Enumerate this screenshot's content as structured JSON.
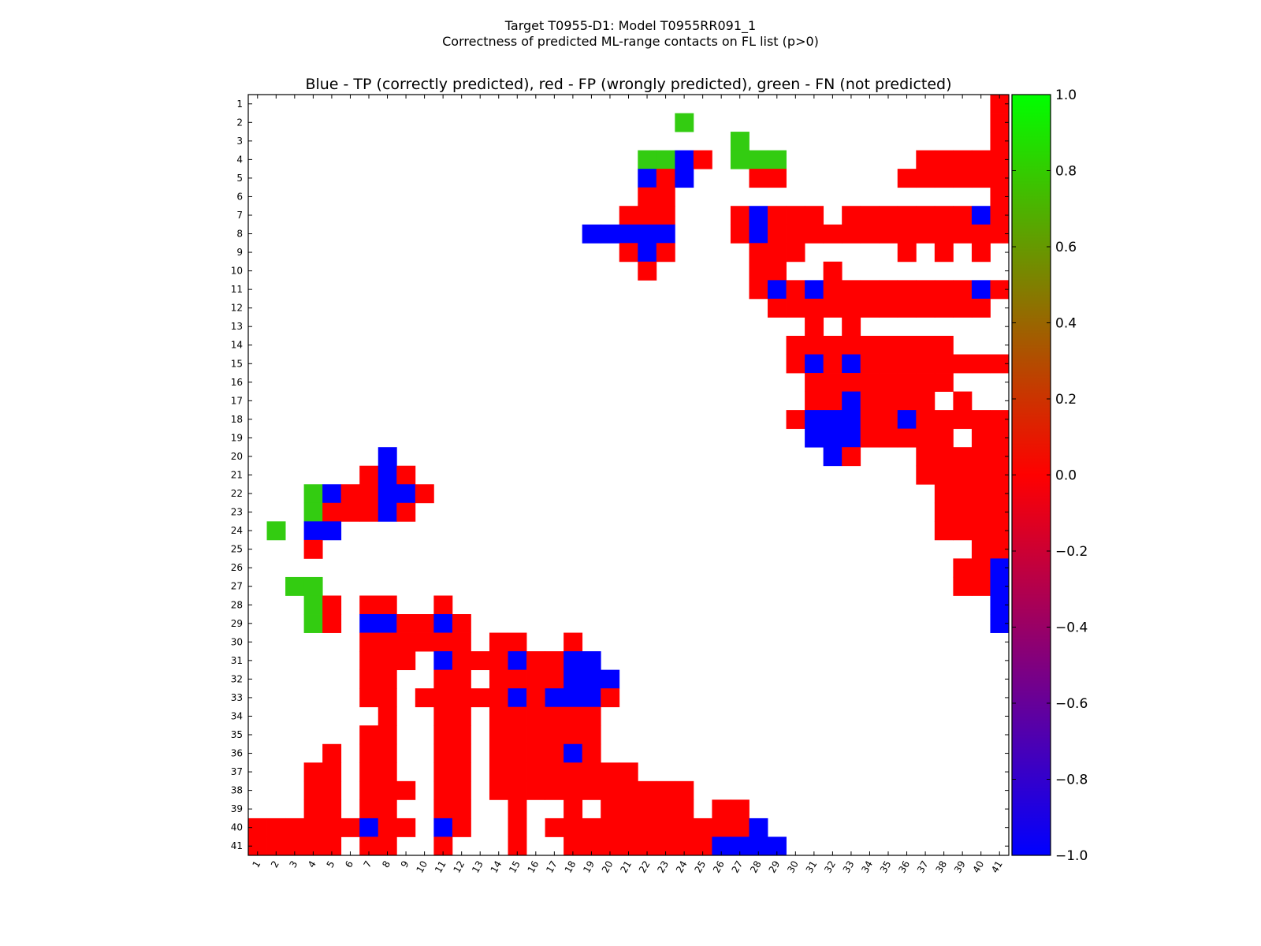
{
  "title": "Target T0955-D1: Model T0955RR091_1",
  "subtitle": "Correctness of predicted ML-range contacts on FL list (p>0)",
  "chart_data": {
    "type": "heatmap",
    "title": "Blue - TP (correctly predicted), red - FP (wrongly predicted), green - FN (not predicted)",
    "n": 41,
    "x_ticks": [
      "1",
      "2",
      "3",
      "4",
      "5",
      "6",
      "7",
      "8",
      "9",
      "10",
      "11",
      "12",
      "13",
      "14",
      "15",
      "16",
      "17",
      "18",
      "19",
      "20",
      "21",
      "22",
      "23",
      "24",
      "25",
      "26",
      "27",
      "28",
      "29",
      "30",
      "31",
      "32",
      "33",
      "34",
      "35",
      "36",
      "37",
      "38",
      "39",
      "40",
      "41"
    ],
    "y_ticks": [
      "1",
      "2",
      "3",
      "4",
      "5",
      "6",
      "7",
      "8",
      "9",
      "10",
      "11",
      "12",
      "13",
      "14",
      "15",
      "16",
      "17",
      "18",
      "19",
      "20",
      "21",
      "22",
      "23",
      "24",
      "25",
      "26",
      "27",
      "28",
      "29",
      "30",
      "31",
      "32",
      "33",
      "34",
      "35",
      "36",
      "37",
      "38",
      "39",
      "40",
      "41"
    ],
    "colorbar": {
      "min": -1.0,
      "max": 1.0,
      "ticks": [
        "1.0",
        "0.8",
        "0.6",
        "0.4",
        "0.2",
        "0.0",
        "−0.2",
        "−0.4",
        "−0.6",
        "−0.8",
        "−1.0"
      ],
      "tick_values": [
        1.0,
        0.8,
        0.6,
        0.4,
        0.2,
        0.0,
        -0.2,
        -0.4,
        -0.6,
        -0.8,
        -1.0
      ],
      "colors": [
        "#0000ff",
        "#ff0000",
        "#00ff00"
      ]
    },
    "legend": {
      "1": "#33cc11",
      "0": "#ff0000",
      "-1": "#0000ff"
    },
    "rows": [
      "........................................R",
      ".......................G................R",
      "..........................G.............R",
      ".....................GGBR.GGG.......RRRRR",
      ".....................BRB...RR......RRRRRR",
      ".....................RR.................R",
      "....................RRR...RBRRR.RRRRRRRBR",
      "..................BBBBB...RBRRRRRRRRRRRRR",
      "....................RBR....RRR.....R.R.R.",
      ".....................R.....RR..R.........",
      "...........................RBRBRRRRRRRRBR",
      "............................RRRRRRRRRRRR.",
      "..............................R.R........",
      ".............................RRRRRRRRR...",
      ".............................RBRBRRRRRRRR",
      "..............................RRRRRRRR...",
      "..............................RRBRRRR.R..",
      ".............................RBBBRRBRRRRR",
      "..............................BBBRRRRR.RR",
      ".......B.......................BR...RRRRR",
      "......RBR...........................RRRRR",
      "...GBRRBBR...........................RRRR",
      "...GRRRBR............................RRRR",
      ".G.BB................................RRRR",
      "...R...................................RR",
      "......................................RRB",
      "..GG..................................RRB",
      "...GR.RR..R.............................B",
      "...GR.BBRRBR............................B",
      "......RRRRRR.RR..R.......................",
      "......RRR.BRRRBRRBB......................",
      "......RR..RR.RRRRBBB.....................",
      "......RR.RRRRRBRBBBR.....................",
      ".......R..RR.RRRRRR......................",
      "......RR..RR.RRRRRR......................",
      "....R.RR..RR.RRRRBR......................",
      "...RR.RR..RR.RRRRRRRR....................",
      "...RR.RRR.RR.RRRRRRRRRRR.................",
      "...RR.RR..RR..R..R.RRRRR.RR..............",
      "RRRRRRBRR.BR..R.RRRRRRRRRRRB.............",
      "RRRRR.RR..R...R..RRRRRRRRBBBB............"
    ]
  }
}
